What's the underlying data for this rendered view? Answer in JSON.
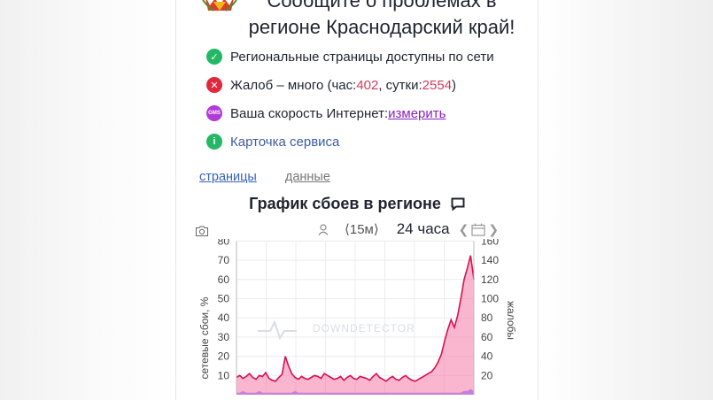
{
  "heading": {
    "line1": "Сообщите о проблемах в",
    "line2": "регионе Краснодарский край!"
  },
  "status": {
    "pages": "Региональные страницы доступны по сети",
    "complaints_prefix": "Жалоб – много (час: ",
    "complaints_hour": "402",
    "complaints_mid": ", сутки: ",
    "complaints_day": "2554",
    "complaints_suffix": ")",
    "speed_prefix": "Ваша скорость Интернет: ",
    "speed_link": "измерить",
    "speed_icon_text": "GMS",
    "service_card": "Карточка сервиса"
  },
  "tabs": {
    "pages": "страницы",
    "data": "данные"
  },
  "chart_header": {
    "title": "График сбоев в регионе",
    "interval": "⟨15м⟩",
    "period": "24 часа"
  },
  "icons": {
    "ok": "check-circle-icon",
    "error": "x-circle-icon",
    "speed": "speed-icon",
    "info": "info-circle-icon",
    "camera": "camera-icon",
    "person": "person-icon",
    "calendar": "calendar-icon",
    "comment": "comment-icon"
  },
  "colors": {
    "ok": "#25b864",
    "error": "#e0283f",
    "speed": "#b13bd7",
    "link_blue": "#3762b8",
    "complaint_line": "#d4124d",
    "complaint_fill": "#f47aa5",
    "network_fill": "#b16ae0"
  },
  "chart_data": {
    "type": "area",
    "watermark": "DOWNDETECTOR",
    "xlabel": "",
    "ylabel_left": "сетевые сбои, %",
    "ylabel_right": "жалобы",
    "ylim_left": [
      0,
      80
    ],
    "ylim_right": [
      0,
      160
    ],
    "left_ticks": [
      10,
      20,
      30,
      40,
      50,
      60,
      70,
      80
    ],
    "right_ticks": [
      20,
      40,
      60,
      80,
      100,
      120,
      140,
      160
    ],
    "grid": true,
    "series": [
      {
        "axis": "right",
        "values": [
          18,
          20,
          17,
          19,
          22,
          18,
          16,
          20,
          19,
          23,
          17,
          15,
          14,
          18,
          21,
          40,
          30,
          22,
          18,
          16,
          19,
          17,
          16,
          18,
          20,
          19,
          17,
          22,
          20,
          18,
          16,
          17,
          19,
          15,
          18,
          20,
          17,
          16,
          19,
          18,
          17,
          15,
          19,
          22,
          18,
          16,
          14,
          17,
          19,
          16,
          15,
          18,
          20,
          17,
          15,
          14,
          16,
          18,
          20,
          22,
          24,
          28,
          34,
          42,
          56,
          68,
          78,
          70,
          82,
          100,
          120,
          132,
          145,
          120
        ]
      },
      {
        "axis": "left",
        "values": [
          1,
          1,
          2,
          1,
          1,
          1,
          1,
          2,
          1,
          1,
          1,
          1,
          1,
          1,
          1,
          1,
          1,
          1,
          2,
          1,
          1,
          1,
          1,
          1,
          1,
          1,
          1,
          1,
          1,
          1,
          1,
          1,
          1,
          1,
          1,
          1,
          1,
          1,
          1,
          1,
          1,
          1,
          1,
          1,
          1,
          1,
          1,
          1,
          1,
          1,
          1,
          1,
          1,
          1,
          1,
          1,
          1,
          1,
          1,
          1,
          1,
          1,
          1,
          1,
          1,
          1,
          1,
          1,
          1,
          1,
          2,
          2,
          3,
          2
        ]
      }
    ]
  }
}
